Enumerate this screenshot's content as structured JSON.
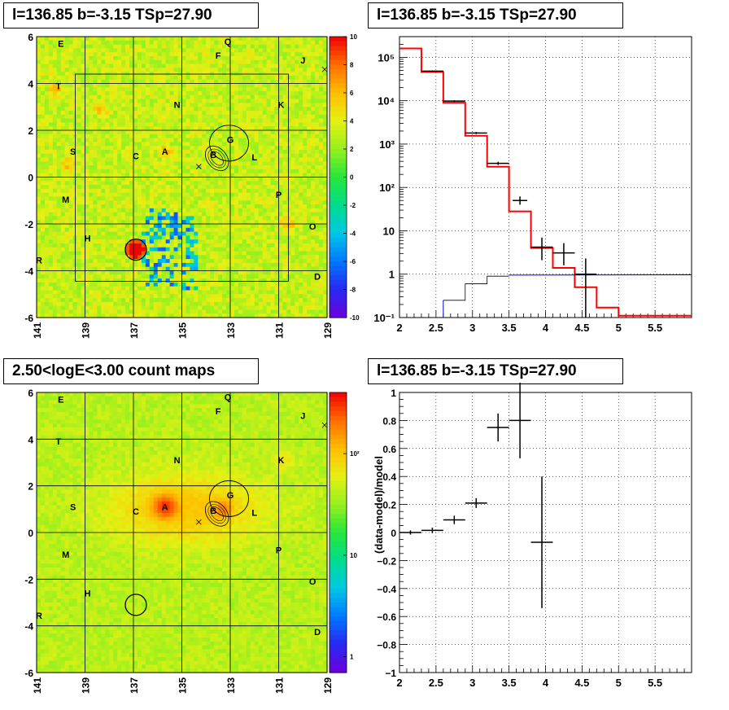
{
  "panels": {
    "top_left_title": "l=136.85 b=-3.15 TSp=27.90",
    "top_right_title": "l=136.85 b=-3.15 TSp=27.90",
    "bottom_left_title": "2.50<logE<3.00 count maps",
    "bottom_right_title": "l=136.85 b=-3.15 TSp=27.90"
  },
  "colors": {
    "red_line": "#ff0000",
    "black_line": "#000000",
    "blue_line": "#0000cc"
  },
  "source_labels": [
    {
      "name": "E",
      "l": 140.0,
      "b": 5.7
    },
    {
      "name": "Q",
      "l": 133.1,
      "b": 5.8
    },
    {
      "name": "F",
      "l": 133.5,
      "b": 5.2
    },
    {
      "name": "J",
      "l": 130.0,
      "b": 5.0
    },
    {
      "name": "T",
      "l": 140.1,
      "b": 3.9
    },
    {
      "name": "N",
      "l": 135.2,
      "b": 3.1
    },
    {
      "name": "K",
      "l": 130.9,
      "b": 3.1
    },
    {
      "name": "G",
      "l": 133.0,
      "b": 1.6
    },
    {
      "name": "S",
      "l": 139.5,
      "b": 1.1
    },
    {
      "name": "A",
      "l": 135.7,
      "b": 1.1
    },
    {
      "name": "B",
      "l": 133.7,
      "b": 0.95
    },
    {
      "name": "L",
      "l": 132.0,
      "b": 0.85
    },
    {
      "name": "C",
      "l": 136.9,
      "b": 0.9
    },
    {
      "name": "M",
      "l": 139.8,
      "b": -0.95
    },
    {
      "name": "P",
      "l": 131.0,
      "b": -0.75
    },
    {
      "name": "O",
      "l": 129.6,
      "b": -2.1
    },
    {
      "name": "H",
      "l": 138.9,
      "b": -2.6
    },
    {
      "name": "R",
      "l": 140.9,
      "b": -3.55
    },
    {
      "name": "D",
      "l": 129.4,
      "b": -4.25
    }
  ],
  "chart_data": [
    {
      "type": "heatmap",
      "title": "l=136.85 b=-3.15 TSp=27.90",
      "xlim": [
        141,
        129
      ],
      "ylim": [
        -6,
        6
      ],
      "x_ticks": [
        "141",
        "139",
        "137",
        "135",
        "133",
        "131",
        "129"
      ],
      "y_ticks": [
        "-6",
        "-4",
        "-2",
        "0",
        "2",
        "4",
        "6"
      ],
      "colorbar_ticks": [
        "-10",
        "-8",
        "-6",
        "-4",
        "-2",
        "0",
        "2",
        "4",
        "6",
        "8",
        "10"
      ],
      "colorbar_range": [
        -10,
        10
      ]
    },
    {
      "type": "line",
      "title": "l=136.85 b=-3.15 TSp=27.90",
      "log_y": true,
      "xlim": [
        2,
        6
      ],
      "ylim": [
        0.1,
        300000
      ],
      "x_ticks": [
        "2",
        "2.5",
        "3",
        "3.5",
        "4",
        "4.5",
        "5",
        "5.5"
      ],
      "y_ticks": [
        {
          "v": 0.1,
          "label": "10⁻¹"
        },
        {
          "v": 1,
          "label": "1"
        },
        {
          "v": 10,
          "label": "10"
        },
        {
          "v": 100,
          "label": "10²"
        },
        {
          "v": 1000,
          "label": "10³"
        },
        {
          "v": 10000,
          "label": "10⁴"
        },
        {
          "v": 100000,
          "label": "10⁵"
        }
      ],
      "data_points": [
        {
          "x": 2.45,
          "xerr": 0.15,
          "y": 48000,
          "ylo": 46000,
          "yhi": 50000
        },
        {
          "x": 2.75,
          "xerr": 0.15,
          "y": 9800,
          "ylo": 9400,
          "yhi": 10200
        },
        {
          "x": 3.05,
          "xerr": 0.15,
          "y": 1800,
          "ylo": 1700,
          "yhi": 1900
        },
        {
          "x": 3.35,
          "xerr": 0.15,
          "y": 360,
          "ylo": 330,
          "yhi": 390
        },
        {
          "x": 3.65,
          "xerr": 0.1,
          "y": 50,
          "ylo": 40,
          "yhi": 62
        },
        {
          "x": 3.95,
          "xerr": 0.15,
          "y": 4.2,
          "ylo": 2.1,
          "yhi": 7
        },
        {
          "x": 4.25,
          "xerr": 0.15,
          "y": 3.1,
          "ylo": 1.6,
          "yhi": 5.2
        },
        {
          "x": 4.55,
          "xerr": 0.15,
          "y": 1,
          "ylo": 0.1,
          "yhi": 2.3
        }
      ],
      "model_total": {
        "edges": [
          2,
          2.3,
          2.6,
          2.9,
          3.2,
          3.5,
          3.8,
          4.1,
          4.4,
          4.7,
          5.0,
          5.3,
          6.0
        ],
        "values": [
          160000,
          46000,
          9000,
          1550,
          300,
          28,
          4,
          1.4,
          0.5,
          0.17,
          0.11,
          0.11
        ]
      },
      "model_source": {
        "edges": [
          2.6,
          2.9,
          3.2,
          3.5,
          3.8,
          4.1,
          4.4,
          4.7,
          5.0,
          6.0
        ],
        "values": [
          0.25,
          0.6,
          0.9,
          0.95,
          0.95,
          0.95,
          0.97,
          0.97,
          0.97
        ]
      }
    },
    {
      "type": "heatmap",
      "title": "2.50<logE<3.00 count maps",
      "log_z": true,
      "xlim": [
        141,
        129
      ],
      "ylim": [
        -6,
        6
      ],
      "x_ticks": [
        "141",
        "139",
        "137",
        "135",
        "133",
        "131",
        "129"
      ],
      "y_ticks": [
        "-6",
        "-4",
        "-2",
        "0",
        "2",
        "4",
        "6"
      ],
      "colorbar_ticks": [
        {
          "v": 1,
          "label": "1"
        },
        {
          "v": 10,
          "label": "10"
        },
        {
          "v": 100,
          "label": "10²"
        }
      ],
      "colorbar_range": [
        0.7,
        400
      ]
    },
    {
      "type": "scatter",
      "title": "l=136.85 b=-3.15 TSp=27.90",
      "ylabel": "(data-model)/model",
      "xlim": [
        2,
        6
      ],
      "ylim": [
        -1,
        1
      ],
      "x_ticks": [
        "2",
        "2.5",
        "3",
        "3.5",
        "4",
        "4.5",
        "5",
        "5.5"
      ],
      "y_ticks": [
        "−1",
        "−0.8",
        "−0.6",
        "−0.4",
        "−0.2",
        "0",
        "0.2",
        "0.4",
        "0.6",
        "0.8",
        "1"
      ],
      "points": [
        {
          "x": 2.15,
          "xerr": 0.15,
          "y": 0.0,
          "yerr": 0.015
        },
        {
          "x": 2.45,
          "xerr": 0.15,
          "y": 0.015,
          "yerr": 0.02
        },
        {
          "x": 2.75,
          "xerr": 0.15,
          "y": 0.09,
          "yerr": 0.03
        },
        {
          "x": 3.05,
          "xerr": 0.15,
          "y": 0.21,
          "yerr": 0.035
        },
        {
          "x": 3.35,
          "xerr": 0.15,
          "y": 0.75,
          "yerr": 0.1
        },
        {
          "x": 3.65,
          "xerr": 0.15,
          "y": 0.8,
          "yerr": 0.27
        },
        {
          "x": 3.95,
          "xerr": 0.15,
          "y": -0.07,
          "yerr": 0.47
        }
      ]
    }
  ]
}
